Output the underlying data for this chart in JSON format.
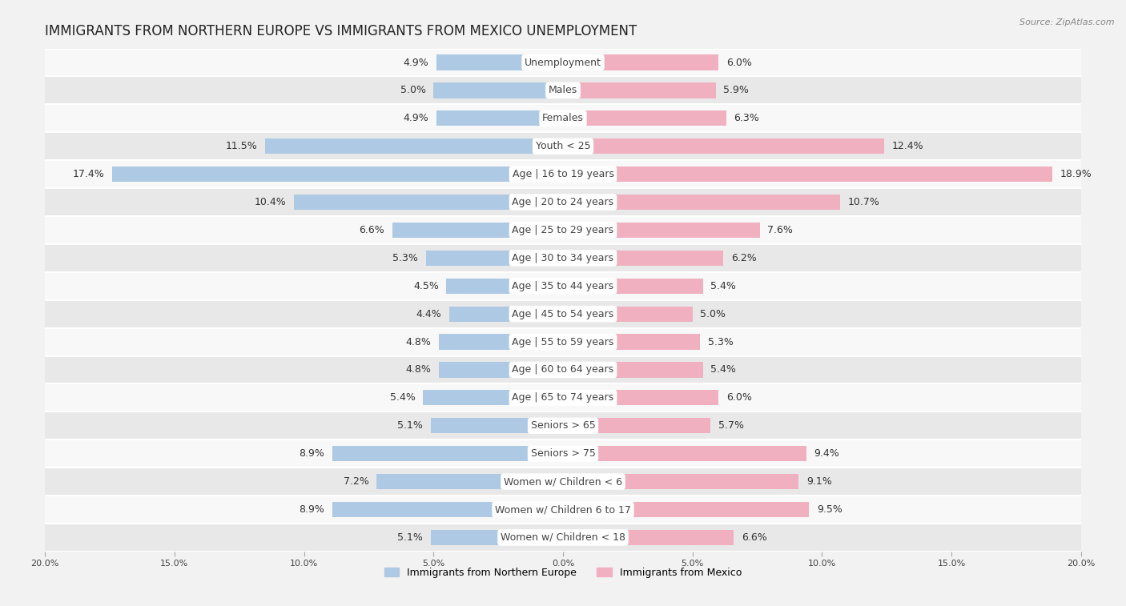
{
  "title": "IMMIGRANTS FROM NORTHERN EUROPE VS IMMIGRANTS FROM MEXICO UNEMPLOYMENT",
  "source": "Source: ZipAtlas.com",
  "categories": [
    "Unemployment",
    "Males",
    "Females",
    "Youth < 25",
    "Age | 16 to 19 years",
    "Age | 20 to 24 years",
    "Age | 25 to 29 years",
    "Age | 30 to 34 years",
    "Age | 35 to 44 years",
    "Age | 45 to 54 years",
    "Age | 55 to 59 years",
    "Age | 60 to 64 years",
    "Age | 65 to 74 years",
    "Seniors > 65",
    "Seniors > 75",
    "Women w/ Children < 6",
    "Women w/ Children 6 to 17",
    "Women w/ Children < 18"
  ],
  "left_values": [
    4.9,
    5.0,
    4.9,
    11.5,
    17.4,
    10.4,
    6.6,
    5.3,
    4.5,
    4.4,
    4.8,
    4.8,
    5.4,
    5.1,
    8.9,
    7.2,
    8.9,
    5.1
  ],
  "right_values": [
    6.0,
    5.9,
    6.3,
    12.4,
    18.9,
    10.7,
    7.6,
    6.2,
    5.4,
    5.0,
    5.3,
    5.4,
    6.0,
    5.7,
    9.4,
    9.1,
    9.5,
    6.6
  ],
  "left_color": "#adc9e4",
  "right_color": "#f0b0c0",
  "axis_limit": 20.0,
  "bar_height": 0.55,
  "bg_color": "#f2f2f2",
  "row_bg_light": "#f8f8f8",
  "row_bg_dark": "#e8e8e8",
  "left_label": "Immigrants from Northern Europe",
  "right_label": "Immigrants from Mexico",
  "title_fontsize": 12,
  "label_fontsize": 9,
  "value_fontsize": 9,
  "category_fontsize": 9,
  "legend_fontsize": 9,
  "source_fontsize": 8,
  "x_bottom_ticks": [
    -20,
    -15,
    -10,
    -5,
    0,
    5,
    10,
    15,
    20
  ],
  "x_bottom_labels": [
    "20.0%",
    "15.0%",
    "10.0%",
    "5.0%",
    "0.0%",
    "5.0%",
    "10.0%",
    "15.0%",
    "20.0%"
  ]
}
